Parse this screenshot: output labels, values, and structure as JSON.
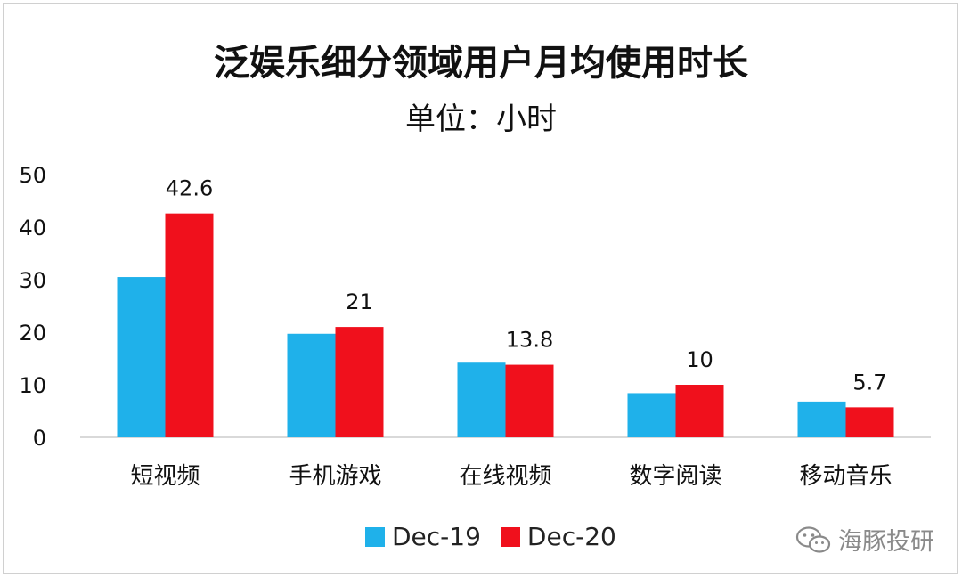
{
  "title": "泛娱乐细分领域用户月均使用时长",
  "subtitle": "单位：小时",
  "watermark": {
    "text": "海豚投研",
    "icon": "wechat-icon"
  },
  "colors": {
    "series1": "#1fb1ea",
    "series2": "#f0101c",
    "axis": "#d9d9d9"
  },
  "chart_data": {
    "type": "bar",
    "title": "泛娱乐细分领域用户月均使用时长",
    "subtitle": "单位：小时",
    "categories": [
      "短视频",
      "手机游戏",
      "在线视频",
      "数字阅读",
      "移动音乐"
    ],
    "series": [
      {
        "name": "Dec-19",
        "values": [
          30.5,
          19.7,
          14.2,
          8.4,
          6.8
        ],
        "data_labels": []
      },
      {
        "name": "Dec-20",
        "values": [
          42.6,
          21,
          13.8,
          10,
          5.7
        ],
        "data_labels": [
          "42.6",
          "21",
          "13.8",
          "10",
          "5.7"
        ]
      }
    ],
    "yticks": [
      "0",
      "10",
      "20",
      "30",
      "40",
      "50"
    ],
    "ylim": [
      0,
      50
    ],
    "grid": false,
    "legend": "bottom"
  }
}
